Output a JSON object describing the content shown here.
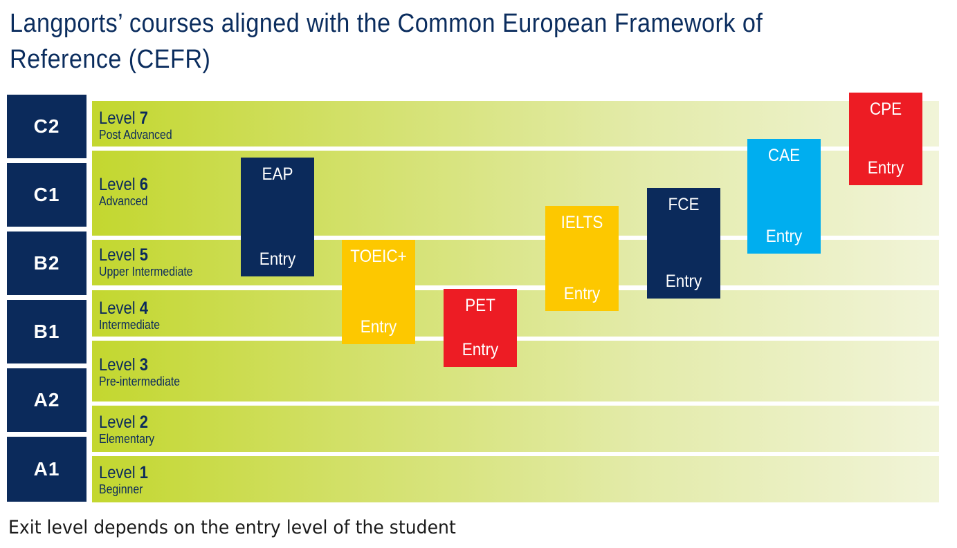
{
  "title": "Langports’ courses aligned with the Common European Framework of Reference (CEFR)",
  "footer": "Exit level depends on the entry level of the student",
  "cefr": [
    "C2",
    "C1",
    "B2",
    "B1",
    "A2",
    "A1"
  ],
  "levels": [
    {
      "word": "Level",
      "number": "7",
      "name": "Post Advanced"
    },
    {
      "word": "Level",
      "number": "6",
      "name": "Advanced"
    },
    {
      "word": "Level",
      "number": "5",
      "name": "Upper Intermediate"
    },
    {
      "word": "Level",
      "number": "4",
      "name": "Intermediate"
    },
    {
      "word": "Level",
      "number": "3",
      "name": "Pre-intermediate"
    },
    {
      "word": "Level",
      "number": "2",
      "name": "Elementary"
    },
    {
      "word": "Level",
      "number": "1",
      "name": "Beginner"
    }
  ],
  "courses": [
    {
      "name": "EAP",
      "entry": "Entry",
      "color": "#0b2a5b"
    },
    {
      "name": "TOEIC+",
      "entry": "Entry",
      "color": "#fdc800"
    },
    {
      "name": "PET",
      "entry": "Entry",
      "color": "#ed1c24"
    },
    {
      "name": "IELTS",
      "entry": "Entry",
      "color": "#fdc800"
    },
    {
      "name": "FCE",
      "entry": "Entry",
      "color": "#0b2a5b"
    },
    {
      "name": "CAE",
      "entry": "Entry",
      "color": "#00aeef"
    },
    {
      "name": "CPE",
      "entry": "Entry",
      "color": "#ed1c24"
    }
  ],
  "colors": {
    "navy": "#0b2a5b",
    "band_start": "#c3d72f",
    "band_end": "#f1f4d8"
  }
}
